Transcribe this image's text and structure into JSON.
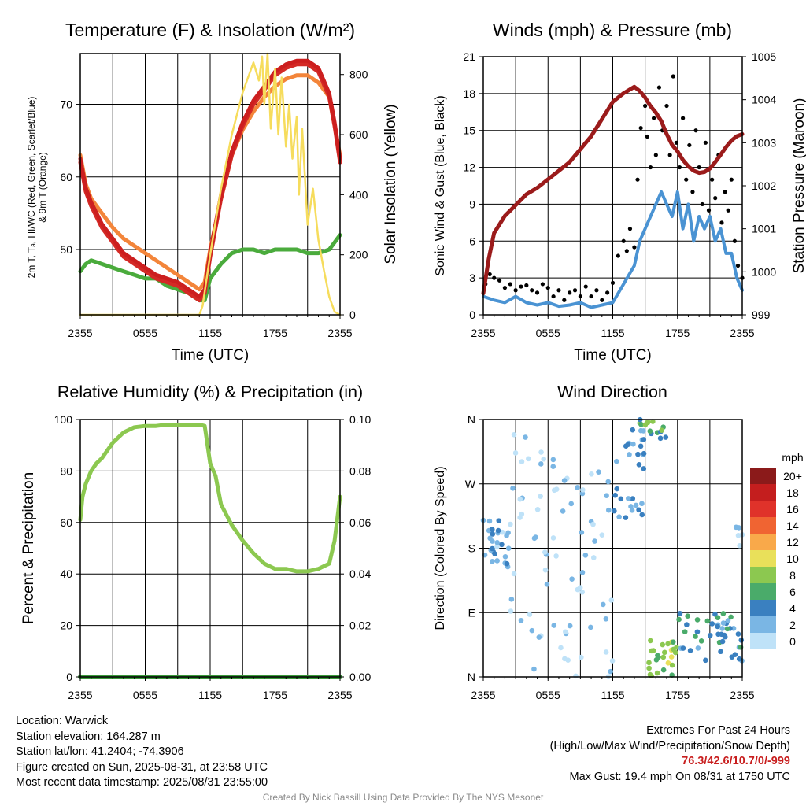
{
  "page": {
    "footer": "Created By Nick Bassill Using Data Provided By The NYS Mesonet"
  },
  "info": {
    "location": "Location: Warwick",
    "elevation": "Station elevation: 164.287 m",
    "latlon": "Station lat/lon: 41.2404; -74.3906",
    "created": "Figure created on Sun, 2025-08-31, at 23:58 UTC",
    "recent": "Most recent data timestamp: 2025/08/31 23:55:00"
  },
  "extremes": {
    "title": "Extremes For Past 24 Hours",
    "subtitle": "(High/Low/Max Wind/Precipitation/Snow Depth)",
    "values": "76.3/42.6/10.7/0/-999",
    "max_gust": "Max Gust: 19.4 mph On 08/31 at 1750 UTC"
  },
  "colors": {
    "temp": "#d42a26",
    "dewpoint": "#4aab3c",
    "heat_index": "#cc1f1f",
    "temp9m": "#f3853a",
    "insolation": "#f6dc5c",
    "wind": "#4a93d3",
    "gust": "#000000",
    "pressure": "#9b1b1b",
    "rh": "#8cc850",
    "precip": "#3a9a3a"
  },
  "chart_data": [
    {
      "type": "line",
      "title": "Temperature (F) & Insolation (W/m²)",
      "xlabel": "Time (UTC)",
      "ylabel": "2m T, Td, HI/WC (Red, Green, Scarlet/Blue) & 9m T (Orange)",
      "ylabel_lines": [
        "2m T, Tₐ, HI/WC (Red, Green, Scarlet/Blue)",
        "& 9m T (Orange)"
      ],
      "y2label": "Solar Insolation (Yellow)",
      "x_ticks": [
        "2355",
        "0555",
        "1155",
        "1755",
        "2355"
      ],
      "y_ticks": [
        "50",
        "60",
        "70"
      ],
      "y2_ticks": [
        "0",
        "200",
        "400",
        "600",
        "800"
      ],
      "ylim": [
        41,
        77
      ],
      "y2lim": [
        0,
        870
      ],
      "x_hours": [
        0,
        24
      ],
      "series": [
        {
          "color": "#4aab3c",
          "axis": "left",
          "x": [
            0,
            0.5,
            1,
            2,
            3,
            4,
            5,
            6,
            7,
            8,
            9,
            10,
            11,
            11.5,
            12,
            13,
            14,
            15,
            16,
            17,
            18,
            19,
            20,
            21,
            22,
            23,
            24
          ],
          "values": [
            47,
            48,
            48.5,
            48,
            47.5,
            47,
            46.5,
            46,
            46,
            45,
            44.5,
            44,
            43,
            43,
            46,
            48,
            49.5,
            50,
            50,
            49.5,
            50,
            50,
            50,
            49.5,
            49.5,
            50,
            52
          ]
        },
        {
          "color": "#f3853a",
          "axis": "left",
          "x": [
            0,
            0.5,
            1,
            2,
            3,
            4,
            5,
            6,
            7,
            8,
            9,
            10,
            11,
            11.5,
            12,
            13,
            14,
            15,
            16,
            17,
            18,
            19,
            20,
            21,
            22,
            23,
            23.5,
            24
          ],
          "values": [
            63,
            59,
            57,
            55,
            53,
            51.5,
            50.5,
            49.5,
            48.5,
            47.5,
            46.5,
            45.5,
            44.5,
            45.5,
            50,
            57,
            63,
            66.5,
            69,
            71,
            72.5,
            73.5,
            74,
            74,
            73,
            71,
            67,
            63
          ]
        },
        {
          "color": "#d42a26",
          "axis": "left",
          "x": [
            0,
            0.5,
            1,
            2,
            3,
            4,
            5,
            6,
            7,
            8,
            9,
            10,
            11,
            11.5,
            12,
            13,
            14,
            15,
            16,
            17,
            18,
            19,
            20,
            21,
            22,
            23,
            23.5,
            24
          ],
          "values": [
            62,
            58,
            56,
            53,
            51,
            49,
            48,
            47,
            46,
            45.5,
            45,
            44,
            43,
            44,
            49,
            57,
            63,
            67,
            70,
            72,
            74,
            75,
            75.5,
            75.5,
            74.5,
            71,
            67,
            62
          ]
        },
        {
          "color": "#cc1f1f",
          "axis": "left",
          "x": [
            0,
            0.5,
            1,
            2,
            3,
            4,
            5,
            6,
            7,
            8,
            9,
            10,
            11,
            11.5,
            12,
            13,
            14,
            15,
            16,
            17,
            18,
            19,
            20,
            21,
            22,
            23,
            23.5,
            24
          ],
          "values": [
            62.5,
            58.5,
            56.5,
            53.5,
            51.5,
            49.5,
            48.5,
            47.5,
            46.5,
            46,
            45.5,
            44.5,
            43.5,
            44.5,
            49.5,
            57.5,
            63.5,
            67.5,
            70.5,
            72.5,
            74.5,
            75.5,
            76,
            76,
            75,
            71.5,
            67.5,
            62.5
          ]
        },
        {
          "color": "#f6dc5c",
          "axis": "right",
          "x": [
            0,
            6,
            10,
            11,
            11.3,
            12,
            13,
            14,
            15,
            15.5,
            16,
            16.5,
            16.8,
            17,
            17.3,
            17.6,
            18,
            18.3,
            18.6,
            19,
            19.3,
            19.6,
            20,
            20.2,
            20.5,
            21,
            21.5,
            22,
            22.5,
            23,
            23.5,
            24
          ],
          "values": [
            0,
            0,
            0,
            0,
            30,
            200,
            420,
            600,
            740,
            790,
            840,
            780,
            860,
            700,
            870,
            620,
            820,
            600,
            790,
            560,
            700,
            520,
            660,
            400,
            620,
            300,
            420,
            250,
            150,
            60,
            10,
            0
          ]
        }
      ]
    },
    {
      "type": "line",
      "title": "Winds (mph) & Pressure (mb)",
      "xlabel": "Time (UTC)",
      "ylabel": "Sonic Wind & Gust (Blue, Black)",
      "y2label": "Station Pressure (Maroon)",
      "x_ticks": [
        "2355",
        "0555",
        "1155",
        "1755",
        "2355"
      ],
      "y_ticks": [
        "0",
        "3",
        "6",
        "9",
        "12",
        "15",
        "18",
        "21"
      ],
      "y2_ticks": [
        "999",
        "1000",
        "1001",
        "1002",
        "1003",
        "1004",
        "1005"
      ],
      "ylim": [
        0,
        21
      ],
      "y2lim": [
        999,
        1005
      ],
      "x_hours": [
        0,
        24
      ],
      "series": [
        {
          "name": "Sonic Wind",
          "color": "#4a93d3",
          "axis": "left",
          "x": [
            0,
            1,
            2,
            3,
            4,
            5,
            6,
            7,
            8,
            9,
            10,
            11,
            12,
            13,
            14,
            14.5,
            15,
            15.5,
            16,
            16.5,
            17,
            17.5,
            18,
            18.5,
            19,
            19.5,
            20,
            20.5,
            21,
            21.5,
            22,
            22.5,
            23,
            23.5,
            24
          ],
          "values": [
            1.5,
            1.2,
            1,
            1.5,
            1,
            0.8,
            1,
            0.7,
            0.8,
            1,
            0.6,
            0.8,
            1,
            2.5,
            4,
            6,
            7,
            8,
            9,
            10,
            9,
            8,
            10,
            7,
            9,
            6,
            8,
            7,
            8,
            6,
            7,
            5,
            5,
            3,
            2
          ]
        },
        {
          "name": "Gust",
          "color": "#000000",
          "axis": "left",
          "x": [
            0.2,
            0.6,
            1.0,
            1.5,
            2.0,
            2.5,
            3.0,
            3.5,
            4.0,
            4.5,
            5.0,
            5.5,
            6.0,
            6.5,
            7.0,
            7.5,
            8.0,
            8.5,
            9.0,
            9.5,
            10.0,
            10.5,
            11.0,
            11.5,
            12.0,
            12.5,
            13.0,
            13.3,
            13.6,
            14.0,
            14.3,
            14.6,
            15.0,
            15.2,
            15.5,
            15.8,
            16.0,
            16.3,
            16.6,
            17.0,
            17.3,
            17.6,
            17.9,
            18.2,
            18.5,
            18.8,
            19.1,
            19.4,
            19.7,
            20.0,
            20.3,
            20.6,
            20.9,
            21.2,
            21.5,
            21.8,
            22.1,
            22.4,
            22.7,
            23.0,
            23.3,
            23.6,
            24.0
          ],
          "values": [
            2.5,
            3.3,
            3,
            2.8,
            2.2,
            2.5,
            2,
            2.3,
            2.4,
            2,
            1.8,
            2.5,
            2.2,
            1.5,
            2,
            1.2,
            1.8,
            2,
            1.5,
            2.3,
            1.5,
            2,
            1.2,
            1.8,
            2.6,
            4.8,
            6,
            5.2,
            7,
            5.5,
            11,
            15.2,
            17,
            14.5,
            12,
            16,
            13,
            18.5,
            15,
            17,
            13,
            19.4,
            14,
            12,
            16,
            11,
            13.8,
            10,
            15,
            12,
            9,
            14,
            8.5,
            11,
            9.5,
            13,
            7.5,
            10,
            8.5,
            11,
            6,
            4,
            3
          ]
        },
        {
          "name": "Pressure",
          "color": "#9b1b1b",
          "axis": "right",
          "x": [
            0,
            0.5,
            1,
            2,
            3,
            4,
            5,
            6,
            7,
            8,
            9,
            10,
            11,
            12,
            13,
            14,
            14.5,
            15,
            15.5,
            16,
            16.5,
            17,
            17.5,
            18,
            18.5,
            19,
            19.5,
            20,
            20.5,
            21,
            21.5,
            22,
            22.5,
            23,
            23.5,
            24
          ],
          "values": [
            999.5,
            1000.3,
            1000.9,
            1001.3,
            1001.55,
            1001.8,
            1001.95,
            1002.15,
            1002.35,
            1002.55,
            1002.85,
            1003.15,
            1003.55,
            1003.95,
            1004.15,
            1004.3,
            1004.2,
            1004.05,
            1003.85,
            1003.7,
            1003.5,
            1003.2,
            1002.95,
            1002.8,
            1002.6,
            1002.45,
            1002.35,
            1002.3,
            1002.32,
            1002.4,
            1002.55,
            1002.72,
            1002.9,
            1003.05,
            1003.15,
            1003.2
          ]
        }
      ]
    },
    {
      "type": "line",
      "title": "Relative Humidity (%) & Precipitation (in)",
      "ylabel": "Percent & Precipitation",
      "x_ticks": [
        "2355",
        "0555",
        "1155",
        "1755",
        "2355"
      ],
      "y_ticks": [
        "0",
        "20",
        "40",
        "60",
        "80",
        "100"
      ],
      "y2_ticks": [
        "0.00",
        "0.02",
        "0.04",
        "0.06",
        "0.08",
        "0.10"
      ],
      "ylim": [
        0,
        100
      ],
      "y2lim": [
        0,
        0.1
      ],
      "x_hours": [
        0,
        24
      ],
      "series": [
        {
          "name": "Relative Humidity",
          "color": "#8cc850",
          "axis": "left",
          "x": [
            0,
            0.2,
            0.5,
            1,
            1.5,
            2,
            3,
            4,
            5,
            6,
            7,
            8,
            9,
            10,
            11,
            11.5,
            12,
            12.5,
            13,
            14,
            15,
            16,
            17,
            18,
            19,
            20,
            21,
            22,
            22.5,
            23,
            23.5,
            24
          ],
          "values": [
            61,
            70,
            75,
            80,
            83,
            85,
            91,
            95,
            97,
            97.5,
            97.5,
            98,
            98,
            98,
            98,
            97.5,
            83,
            78,
            67,
            59,
            53,
            48,
            44,
            42,
            42,
            41,
            41,
            42,
            43,
            44,
            53,
            70
          ]
        },
        {
          "name": "Precipitation",
          "color": "#3a9a3a",
          "axis": "right",
          "x": [
            0,
            24
          ],
          "values": [
            0,
            0
          ]
        }
      ]
    },
    {
      "type": "scatter",
      "title": "Wind Direction",
      "ylabel": "Direction (Colored By Speed)",
      "x_ticks": [
        "2355",
        "0555",
        "1155",
        "1755",
        "2355"
      ],
      "y_ticks": [
        "N",
        "E",
        "S",
        "W",
        "N"
      ],
      "ylim": [
        0,
        360
      ],
      "x_hours": [
        0,
        24
      ],
      "legend": {
        "title": "mph",
        "labels": [
          "20+",
          "18",
          "16",
          "14",
          "12",
          "10",
          "8",
          "6",
          "4",
          "2",
          "0"
        ],
        "colors": [
          "#8b1a1a",
          "#c41e1e",
          "#e0322a",
          "#f06432",
          "#f9a94a",
          "#e9e05a",
          "#8cc850",
          "#4aab6a",
          "#3a80c0",
          "#7ab6e4",
          "#bfe2f8"
        ]
      }
    }
  ]
}
